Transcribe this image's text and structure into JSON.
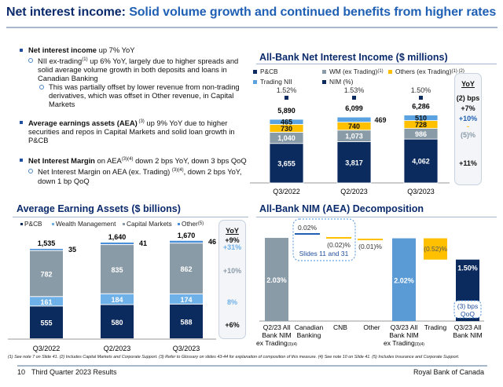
{
  "title": {
    "bold": "Net interest income:",
    "rest": "Solid volume growth and continued benefits from higher rates"
  },
  "bullets": [
    {
      "bold": "Net interest income",
      "text": " up 7% YoY",
      "subs": [
        {
          "text": "NII ex-trading",
          "sup": "(1)",
          "text2": " up 6% YoY, largely due to higher spreads and solid average volume growth in both deposits and loans in Canadian Banking"
        },
        {
          "text": "This was partially offset by lower revenue from non-trading derivatives, which was offset in Other revenue, in Capital Markets",
          "level": 2
        }
      ]
    },
    {
      "bold": "Average earnings assets (AEA)",
      "sup": " (3)",
      "text": " up 9% YoY due to higher securities and repos in Capital Markets and solid loan growth in P&CB",
      "subs": []
    },
    {
      "bold": "Net Interest Margin",
      "text": " on AEA",
      "sup": "(3)(4)",
      "text2": " down 2 bps YoY, down 3 bps QoQ",
      "subs": [
        {
          "text": "Net Interest Margin on AEA (ex. Trading) ",
          "sup": "(3)(4)",
          "text2": ", down 2 bps YoY, down 1 bp QoQ"
        }
      ]
    }
  ],
  "colors": {
    "pcb": "#0b2a5e",
    "wm": "#8a9ba8",
    "others": "#ffc000",
    "trading": "#5ba3e0",
    "wealth_aea": "#6eb0e8",
    "cm": "#8a9ba8",
    "other_aea": "#4a90d9",
    "nim_bar": "#8a9ba8",
    "nim_q3": "#5b9bd5"
  },
  "chart_data": [
    {
      "type": "bar",
      "title": "All-Bank Net Interest Income ($ millions)",
      "stacked": true,
      "categories": [
        "Q3/2022",
        "Q2/2023",
        "Q3/2023"
      ],
      "series": [
        {
          "name": "P&CB",
          "sup": "",
          "values": [
            3655,
            3817,
            4062
          ],
          "labels": [
            "3,655",
            "3,817",
            "4,062"
          ]
        },
        {
          "name": "WM (ex Trading)",
          "sup": "(1)",
          "values": [
            1040,
            1073,
            986
          ],
          "labels": [
            "1,040",
            "1,073",
            "986"
          ]
        },
        {
          "name": "Others (ex Trading)",
          "sup": "(1) (2)",
          "values": [
            730,
            740,
            728
          ],
          "labels": [
            "730",
            "740",
            "728"
          ]
        },
        {
          "name": "Trading NII",
          "sup": "",
          "values": [
            465,
            469,
            510
          ],
          "labels": [
            "465",
            "469",
            "510"
          ]
        }
      ],
      "totals": [
        "5,890",
        "6,099",
        "6,286"
      ],
      "nim": {
        "name": "NIM (%)",
        "values": [
          1.52,
          1.53,
          1.5
        ],
        "labels": [
          "1.52%",
          "1.53%",
          "1.50%"
        ]
      },
      "yoy": {
        "header": "YoY",
        "nim": "(2) bps",
        "total": "+7%",
        "trading": "+10%",
        "others": "-",
        "wm": "(5)%",
        "pcb": "+11%"
      }
    },
    {
      "type": "bar",
      "title": "Average Earning Assets ($ billions)",
      "stacked": true,
      "categories": [
        "Q3/2022",
        "Q2/2023",
        "Q3/2023"
      ],
      "series": [
        {
          "name": "P&CB",
          "sup": "",
          "values": [
            555,
            580,
            588
          ],
          "labels": [
            "555",
            "580",
            "588"
          ]
        },
        {
          "name": "Wealth Management",
          "sup": "",
          "values": [
            161,
            184,
            174
          ],
          "labels": [
            "161",
            "184",
            "174"
          ]
        },
        {
          "name": "Capital Markets",
          "sup": "",
          "values": [
            782,
            835,
            862
          ],
          "labels": [
            "782",
            "835",
            "862"
          ]
        },
        {
          "name": "Other",
          "sup": "(5)",
          "values": [
            35,
            41,
            46
          ],
          "labels": [
            "35",
            "41",
            "46"
          ]
        }
      ],
      "totals": [
        "1,535",
        "1,640",
        "1,670"
      ],
      "yoy": {
        "header": "YoY",
        "total": "+9%",
        "other": "+31%",
        "cm": "+10%",
        "wm": "8%",
        "pcb": "+6%"
      }
    },
    {
      "type": "bar",
      "subtype": "waterfall",
      "title": "All-Bank NIM (AEA) Decomposition",
      "categories": [
        "Q2/23 All Bank NIM ex Trading",
        "Canadian Banking",
        "CNB",
        "Other",
        "Q3/23 All Bank NIM ex Trading",
        "Trading",
        "Q3/23 All Bank NIM"
      ],
      "category_sups": [
        "(3)(4)",
        "",
        "",
        "",
        "(3)(4)",
        "",
        ""
      ],
      "values": [
        2.03,
        0.02,
        -0.02,
        -0.01,
        2.02,
        -0.52,
        1.5
      ],
      "labels": [
        "2.03%",
        "0.02%",
        "(0.02)%",
        "(0.01)%",
        "2.02%",
        "(0.52)%",
        "1.50%"
      ],
      "callout": "Slides 11 and 31",
      "qoq": [
        "(3) bps",
        "QoQ"
      ]
    }
  ],
  "footnote": "(1) See note 7 on Slide 41. (2) Includes Capital Markets and Corporate Support. (3) Refer to Glossary on slides 43-44 for explanation of composition of this measure. (4) See note 10 on Slide 41. (5) Includes Insurance and Corporate Support.",
  "footer": {
    "page": "10",
    "title": "Third Quarter 2023 Results",
    "company": "Royal Bank of Canada"
  }
}
